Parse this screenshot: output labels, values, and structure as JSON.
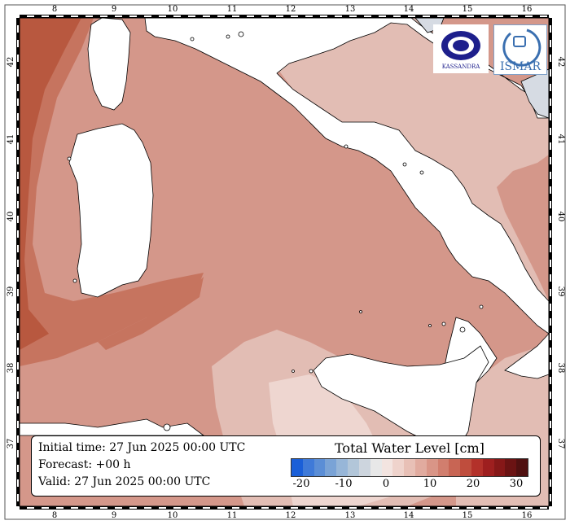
{
  "map": {
    "lon_ticks": [
      "8",
      "9",
      "10",
      "11",
      "12",
      "13",
      "14",
      "15",
      "16"
    ],
    "lat_ticks": [
      "42",
      "41",
      "40",
      "39",
      "38",
      "37"
    ],
    "colors": {
      "sea_main": "#d4978a",
      "sea_dark": "#c6745f",
      "sea_darker": "#b8583f",
      "sea_light": "#e2bdb4",
      "sea_lighter": "#eed6d0",
      "land": "#ffffff",
      "negative_patch": "#d6dbe3"
    }
  },
  "info": {
    "initial_time": "Initial time: 27 Jun 2025 00:00 UTC",
    "forecast": "Forecast: +00 h",
    "valid": "Valid: 27 Jun 2025 00:00 UTC"
  },
  "legend": {
    "title": "Total Water Level [cm]",
    "ticks": [
      "-20",
      "-10",
      "0",
      "10",
      "20",
      "30"
    ],
    "colors": [
      "#1a5fd8",
      "#3f7ad8",
      "#5b8ed6",
      "#7aa3d6",
      "#97b6d8",
      "#b2c6d9",
      "#cdd5de",
      "#e8e8e8",
      "#f3e4e0",
      "#efd3cc",
      "#e8c0b6",
      "#e1ab9f",
      "#d99587",
      "#d17e6e",
      "#c86554",
      "#bf4d3d",
      "#b3312a",
      "#9e1f1f",
      "#861818",
      "#6b1313",
      "#501010"
    ]
  },
  "logos": {
    "kassandra": "KASSANDRA",
    "ismar": "ISMAR"
  }
}
